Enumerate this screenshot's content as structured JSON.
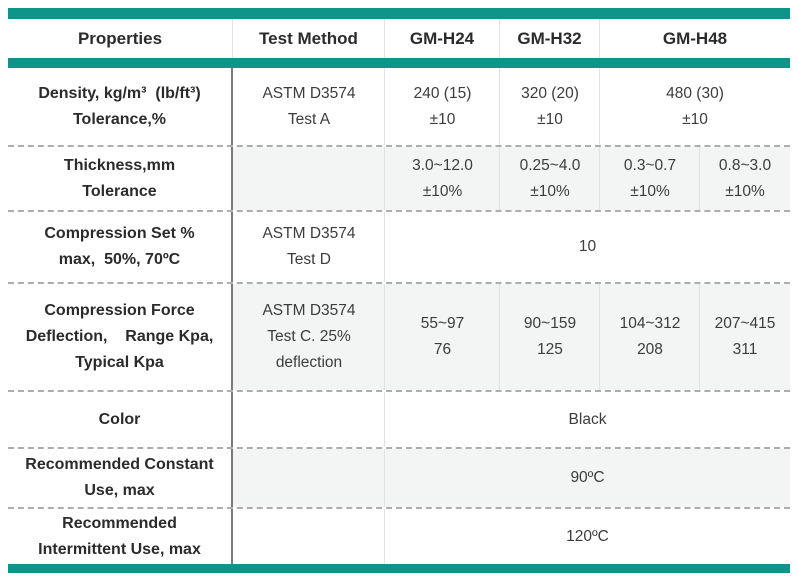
{
  "colors": {
    "accent_teal": "#0E9488",
    "row_shade": "#F2F5F3",
    "dark_divider": "#7A7A7A",
    "dashed_divider": "#ADADAD"
  },
  "header": {
    "properties": "Properties",
    "test_method": "Test Method",
    "gm_h24": "GM-H24",
    "gm_h32": "GM-H32",
    "gm_h48": "GM-H48"
  },
  "rows": {
    "density": {
      "label": [
        "Density, kg/m³  (lb/ft³)",
        "Tolerance,%"
      ],
      "method": [
        "ASTM D3574",
        "Test A"
      ],
      "gm_h24": [
        "240 (15)",
        "±10"
      ],
      "gm_h32": [
        "320 (20)",
        "±10"
      ],
      "gm_h48": [
        "480 (30)",
        "±10"
      ]
    },
    "thickness": {
      "label": [
        "Thickness,mm",
        "Tolerance"
      ],
      "gm_h24": [
        "3.0~12.0",
        "±10%"
      ],
      "gm_h32": [
        "0.25~4.0",
        "±10%"
      ],
      "gm_h48_a": [
        "0.3~0.7",
        "±10%"
      ],
      "gm_h48_b": [
        "0.8~3.0",
        "±10%"
      ]
    },
    "compression_set": {
      "label": [
        "Compression Set %",
        "max,  50%, 70ºC"
      ],
      "method": [
        "ASTM D3574",
        "Test D"
      ],
      "value": "10"
    },
    "compression_force": {
      "label": [
        "Compression Force",
        "Deflection,    Range Kpa,",
        "Typical Kpa"
      ],
      "method": [
        "ASTM D3574",
        "Test C. 25%",
        "deflection"
      ],
      "gm_h24": [
        "55~97",
        "76"
      ],
      "gm_h32": [
        "90~159",
        "125"
      ],
      "gm_h48_a": [
        "104~312",
        "208"
      ],
      "gm_h48_b": [
        "207~415",
        "311"
      ]
    },
    "color": {
      "label": "Color",
      "value": "Black"
    },
    "recommended_constant": {
      "label": [
        "Recommended Constant",
        "Use, max"
      ],
      "value": "90ºC"
    },
    "recommended_intermittent": {
      "label": [
        "Recommended",
        "Intermittent Use, max"
      ],
      "value": "120ºC"
    }
  }
}
